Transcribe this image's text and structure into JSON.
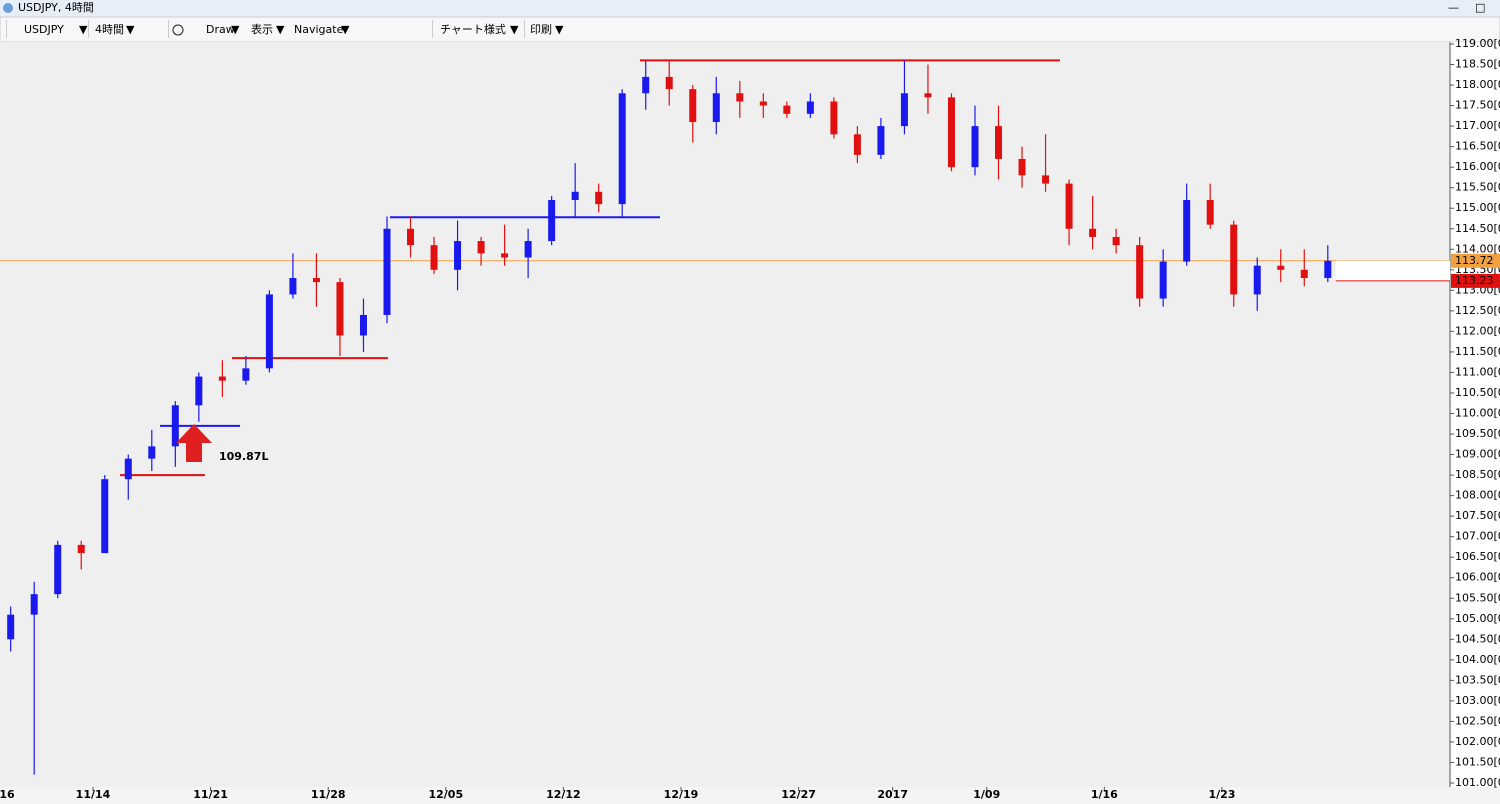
{
  "window_title": "USDJPY, 4時間",
  "toolbar": [
    "USDJPY",
    "4時間",
    "Draw",
    "表示",
    "Navigate",
    "チャート様式",
    "印刷"
  ],
  "chart_data": {
    "type": "candlestick",
    "categories": [
      "16",
      null,
      null,
      null,
      "11/14",
      null,
      null,
      null,
      null,
      "11/21",
      null,
      null,
      null,
      null,
      "11/28",
      null,
      null,
      null,
      null,
      "12/05",
      null,
      null,
      null,
      null,
      "12/12",
      null,
      null,
      null,
      null,
      "12/19",
      null,
      null,
      null,
      null,
      "12/27",
      null,
      null,
      null,
      "2017",
      null,
      null,
      null,
      "1/09",
      null,
      null,
      null,
      null,
      "1/16",
      null,
      null,
      null,
      null,
      "1/23",
      null,
      null,
      null,
      null
    ],
    "open": [
      104.5,
      105.1,
      105.6,
      106.8,
      106.6,
      108.4,
      108.9,
      109.2,
      110.2,
      110.9,
      110.8,
      111.1,
      112.9,
      113.3,
      113.2,
      111.9,
      112.4,
      114.5,
      114.1,
      113.5,
      114.2,
      113.9,
      113.8,
      114.2,
      115.2,
      115.4,
      115.1,
      117.8,
      118.2,
      117.9,
      117.1,
      117.8,
      117.6,
      117.5,
      117.3,
      117.6,
      116.8,
      116.3,
      117.0,
      117.8,
      117.7,
      116.0,
      117.0,
      116.2,
      115.8,
      115.6,
      114.5,
      114.3,
      114.1,
      112.8,
      113.7,
      115.2,
      114.6,
      112.9,
      113.6,
      113.5,
      113.3
    ],
    "high": [
      105.3,
      105.9,
      106.9,
      106.9,
      108.5,
      109.0,
      109.6,
      110.3,
      111.0,
      111.3,
      111.4,
      113.0,
      113.9,
      113.9,
      113.3,
      112.8,
      114.8,
      114.8,
      114.3,
      114.7,
      114.3,
      114.6,
      114.5,
      115.3,
      116.1,
      115.6,
      117.9,
      118.6,
      118.6,
      118.0,
      118.2,
      118.1,
      117.8,
      117.6,
      117.8,
      117.7,
      117.0,
      117.2,
      118.6,
      118.5,
      117.8,
      117.5,
      117.5,
      116.5,
      116.8,
      115.7,
      115.3,
      114.5,
      114.3,
      114.0,
      115.6,
      115.6,
      114.7,
      113.8,
      114.0,
      114.0,
      114.1
    ],
    "low": [
      104.2,
      101.2,
      105.5,
      106.2,
      106.6,
      107.9,
      108.6,
      108.7,
      109.8,
      110.4,
      110.7,
      111.0,
      112.8,
      112.6,
      111.4,
      111.5,
      112.2,
      113.8,
      113.4,
      113.0,
      113.6,
      113.6,
      113.3,
      114.1,
      114.8,
      114.9,
      114.8,
      117.4,
      117.5,
      116.6,
      116.8,
      117.2,
      117.2,
      117.2,
      117.2,
      116.7,
      116.1,
      116.2,
      116.8,
      117.3,
      115.9,
      115.8,
      115.7,
      115.5,
      115.4,
      114.1,
      114.0,
      113.9,
      112.6,
      112.6,
      113.6,
      114.5,
      112.6,
      112.5,
      113.2,
      113.1,
      113.2
    ],
    "close": [
      105.1,
      105.6,
      106.8,
      106.6,
      108.4,
      108.9,
      109.2,
      110.2,
      110.9,
      110.8,
      111.1,
      112.9,
      113.3,
      113.2,
      111.9,
      112.4,
      114.5,
      114.1,
      113.5,
      114.2,
      113.9,
      113.8,
      114.2,
      115.2,
      115.4,
      115.1,
      117.8,
      118.2,
      117.9,
      117.1,
      117.8,
      117.6,
      117.5,
      117.3,
      117.6,
      116.8,
      116.3,
      117.0,
      117.8,
      117.7,
      116.0,
      117.0,
      116.2,
      115.8,
      115.6,
      114.5,
      114.3,
      114.1,
      112.8,
      113.7,
      115.2,
      114.6,
      112.9,
      113.6,
      113.5,
      113.3,
      113.72
    ],
    "up_color": "#1a1aee",
    "down_color": "#e01010",
    "ylim": [
      101,
      119
    ],
    "yticks": [
      {
        "value": 119,
        "label": "119.00[0"
      },
      {
        "value": 118.5,
        "label": "118.50[0"
      },
      {
        "value": 118,
        "label": "118.00[0"
      },
      {
        "value": 117.5,
        "label": "117.50[0"
      },
      {
        "value": 117,
        "label": "117.00[0"
      },
      {
        "value": 116.5,
        "label": "116.50[0"
      },
      {
        "value": 116,
        "label": "116.00[0"
      },
      {
        "value": 115.5,
        "label": "115.50[0"
      },
      {
        "value": 115,
        "label": "115.00[0"
      },
      {
        "value": 114.5,
        "label": "114.50[0"
      },
      {
        "value": 114,
        "label": "114.00[0"
      },
      {
        "value": 113.5,
        "label": "113.50[0"
      },
      {
        "value": 113,
        "label": "113.00[0"
      },
      {
        "value": 112.5,
        "label": "112.50[0"
      },
      {
        "value": 112,
        "label": "112.00[0"
      },
      {
        "value": 111.5,
        "label": "111.50[0"
      },
      {
        "value": 111,
        "label": "111.00[0"
      },
      {
        "value": 110.5,
        "label": "110.50[0"
      },
      {
        "value": 110,
        "label": "110.00[0"
      },
      {
        "value": 109.5,
        "label": "109.50[0"
      },
      {
        "value": 109,
        "label": "109.00[0"
      },
      {
        "value": 108.5,
        "label": "108.50[0"
      },
      {
        "value": 108,
        "label": "108.00[0"
      },
      {
        "value": 107.5,
        "label": "107.50[0"
      },
      {
        "value": 107,
        "label": "107.00[0"
      },
      {
        "value": 106.5,
        "label": "106.50[0"
      },
      {
        "value": 106,
        "label": "106.00[0"
      },
      {
        "value": 105.5,
        "label": "105.50[0"
      },
      {
        "value": 105,
        "label": "105.00[0"
      },
      {
        "value": 104.5,
        "label": "104.50[0"
      },
      {
        "value": 104,
        "label": "104.00[0"
      },
      {
        "value": 103.5,
        "label": "103.50[0"
      },
      {
        "value": 103,
        "label": "103.00[0"
      },
      {
        "value": 102.5,
        "label": "102.50[0"
      },
      {
        "value": 102,
        "label": "102.00[0"
      },
      {
        "value": 101.5,
        "label": "101.50[0"
      },
      {
        "value": 101,
        "label": "101.00[0"
      }
    ],
    "levels": [
      {
        "value": 118.6,
        "color": "#e01010"
      },
      {
        "value": 114.78,
        "color": "#1a1aee"
      },
      {
        "value": 111.35,
        "color": "#e01010"
      },
      {
        "value": 109.7,
        "color": "#1a1aee"
      },
      {
        "value": 108.5,
        "color": "#e01010"
      }
    ],
    "price_tags": [
      {
        "value": 113.72,
        "label": "113.72",
        "color": "#f0a040"
      },
      {
        "value": 113.23,
        "label": "113.23",
        "color": "#e01010"
      }
    ],
    "annotation": {
      "text": "109.87L",
      "color": "#e02020"
    }
  }
}
